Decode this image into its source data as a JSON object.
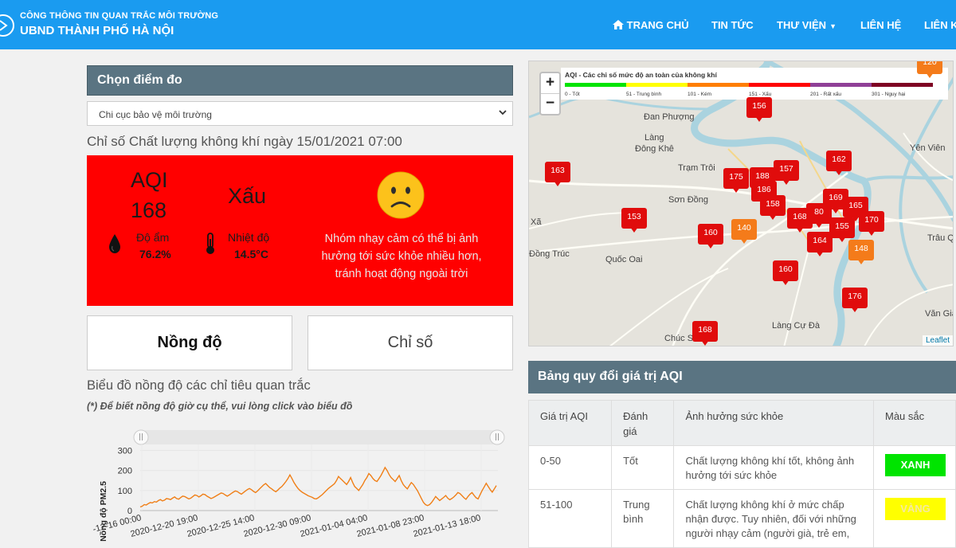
{
  "header": {
    "subtitle": "CÔNG THÔNG TIN QUAN TRẮC MÔI TRƯỜNG",
    "title": "UBND THÀNH PHỐ HÀ NỘI",
    "nav": [
      {
        "label": "TRANG CHỦ",
        "icon": "home-icon"
      },
      {
        "label": "TIN TỨC"
      },
      {
        "label": "THƯ VIỆN",
        "icon": "caret-down-icon"
      },
      {
        "label": "LIÊN HỆ"
      },
      {
        "label": "LIÊN K"
      }
    ]
  },
  "station": {
    "heading": "Chọn điểm đo",
    "selected": "Chi cục bảo vệ môi trường",
    "date_line": "Chỉ số Chất lượng không khí ngày 15/01/2021 07:00"
  },
  "aqi_card": {
    "label": "AQI",
    "value": "168",
    "level": "Xấu",
    "humidity_label": "Độ ẩm",
    "humidity_value": "76.2%",
    "temperature_label": "Nhiệt độ",
    "temperature_value": "14.5°C",
    "advice": "Nhóm nhạy cảm có thể bị ảnh hưởng tới sức khỏe nhiều hơn, tránh hoạt động ngoài trời",
    "color": "#ff0000",
    "icon": "sad-face-icon"
  },
  "tabs": [
    {
      "label": "Nồng độ",
      "active": true
    },
    {
      "label": "Chỉ số",
      "active": false
    }
  ],
  "chart_section": {
    "title": "Biểu đồ nồng độ các chỉ tiêu quan trắc",
    "note": "(*) Để biết nồng độ giờ cụ thể, vui lòng click vào biểu đồ"
  },
  "chart_data": {
    "type": "line",
    "ylabel": "Nồng độ PM2.5",
    "yticks": [
      0,
      100,
      200,
      300
    ],
    "ylim": [
      0,
      330
    ],
    "xticks": [
      "-12-16 00:00",
      "2020-12-20 19:00",
      "2020-12-25 14:00",
      "2020-12-30 09:00",
      "2021-01-04 04:00",
      "2021-01-08 23:00",
      "2021-01-13 18:00"
    ],
    "series": [
      {
        "color": "#f07f17",
        "values": [
          18,
          22,
          30,
          28,
          35,
          40,
          38,
          45,
          42,
          50,
          55,
          48,
          52,
          60,
          58,
          55,
          62,
          68,
          60,
          57,
          65,
          72,
          70,
          64,
          58,
          62,
          70,
          78,
          75,
          68,
          74,
          82,
          80,
          72,
          66,
          60,
          64,
          70,
          76,
          82,
          88,
          85,
          78,
          72,
          78,
          85,
          92,
          98,
          95,
          88,
          82,
          90,
          98,
          105,
          110,
          104,
          96,
          90,
          98,
          108,
          118,
          128,
          135,
          125,
          115,
          108,
          100,
          94,
          102,
          112,
          120,
          132,
          145,
          160,
          178,
          160,
          140,
          124,
          110,
          100,
          92,
          86,
          80,
          74,
          70,
          66,
          60,
          58,
          64,
          72,
          80,
          90,
          100,
          110,
          118,
          126,
          134,
          150,
          170,
          160,
          150,
          140,
          130,
          145,
          165,
          140,
          120,
          110,
          100,
          115,
          130,
          150,
          165,
          185,
          175,
          160,
          150,
          145,
          160,
          175,
          195,
          215,
          200,
          180,
          165,
          155,
          145,
          160,
          175,
          150,
          130,
          118,
          108,
          125,
          140,
          130,
          115,
          100,
          80,
          60,
          40,
          30,
          25,
          30,
          40,
          55,
          70,
          60,
          50,
          58,
          66,
          75,
          62,
          54,
          60,
          68,
          78,
          90,
          85,
          75,
          64,
          56,
          70,
          82,
          90,
          76,
          64,
          58,
          80,
          100,
          118,
          136,
          120,
          104,
          92,
          108,
          125
        ],
        "x_start": "2020-12-16 00:00",
        "x_end": "2021-01-15 07:00"
      }
    ]
  },
  "map": {
    "zoom_in": "+",
    "zoom_out": "−",
    "legend_title": "AQI - Các chỉ số mức độ an toàn của không khí",
    "legend": [
      {
        "label": "0 - Tốt",
        "color": "#00e400"
      },
      {
        "label": "51 - Trung bình",
        "color": "#ffff00"
      },
      {
        "label": "101 - Kém",
        "color": "#ff7e00"
      },
      {
        "label": "151 - Xấu",
        "color": "#ff0000"
      },
      {
        "label": "201 - Rất xấu",
        "color": "#8f3f97"
      },
      {
        "label": "301 - Nguy hại",
        "color": "#7e0023"
      }
    ],
    "places": [
      "Đan Phượng",
      "Làng Đông Khê",
      "Trạm Trôi",
      "Sơn Đồng",
      "Xã",
      "Đồng Trúc",
      "Quốc Oai",
      "Yên Viên",
      "Trâu Q",
      "Văn Gia",
      "Làng Cự Đà",
      "Chúc Sơn"
    ],
    "markers": [
      {
        "value": "156",
        "level": "bad"
      },
      {
        "value": "163",
        "level": "bad"
      },
      {
        "value": "175",
        "level": "bad"
      },
      {
        "value": "188",
        "level": "bad"
      },
      {
        "value": "157",
        "level": "bad"
      },
      {
        "value": "162",
        "level": "bad"
      },
      {
        "value": "186",
        "level": "bad"
      },
      {
        "value": "158",
        "level": "bad"
      },
      {
        "value": "169",
        "level": "bad"
      },
      {
        "value": "165",
        "level": "bad"
      },
      {
        "value": "153",
        "level": "bad"
      },
      {
        "value": "168",
        "level": "bad"
      },
      {
        "value": "80",
        "level": "bad"
      },
      {
        "value": "170",
        "level": "bad"
      },
      {
        "value": "160",
        "level": "bad"
      },
      {
        "value": "140",
        "level": "moderate-high"
      },
      {
        "value": "155",
        "level": "bad"
      },
      {
        "value": "164",
        "level": "bad"
      },
      {
        "value": "148",
        "level": "moderate-high"
      },
      {
        "value": "160",
        "level": "bad"
      },
      {
        "value": "176",
        "level": "bad"
      },
      {
        "value": "168",
        "level": "bad"
      },
      {
        "value": "120",
        "level": "moderate-high"
      }
    ],
    "attribution": "Leaflet"
  },
  "aqi_table": {
    "heading": "Bảng quy đổi giá trị AQI",
    "columns": [
      "Giá trị AQI",
      "Đánh giá",
      "Ảnh hưởng sức khỏe",
      "Màu sắc"
    ],
    "rows": [
      {
        "range": "0-50",
        "rating": "Tốt",
        "effect": "Chất lượng không khí tốt, không ảnh hưởng tới sức khỏe",
        "color_label": "XANH",
        "color": "#00e400"
      },
      {
        "range": "51-100",
        "rating": "Trung bình",
        "effect": "Chất lượng không khí ở mức chấp nhận được. Tuy nhiên, đối với những người nhạy cảm (người già, trẻ em,",
        "color_label": "VÀNG",
        "color": "#ffff00"
      }
    ]
  }
}
